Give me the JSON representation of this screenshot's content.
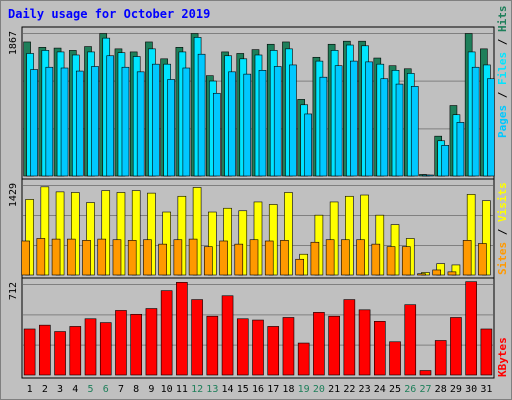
{
  "chart_data": [
    {
      "type": "bar",
      "title": "Daily usage for October 2019",
      "categories": [
        "1",
        "2",
        "3",
        "4",
        "5",
        "6",
        "7",
        "8",
        "9",
        "10",
        "11",
        "12",
        "13",
        "14",
        "15",
        "16",
        "17",
        "18",
        "19",
        "20",
        "21",
        "22",
        "23",
        "24",
        "25",
        "26",
        "27",
        "28",
        "29",
        "30",
        "31"
      ],
      "weekend_categories": [
        "5",
        "6",
        "12",
        "13",
        "19",
        "20",
        "26",
        "27"
      ],
      "ymax_label": "1867",
      "ylim": [
        0,
        1867
      ],
      "series": [
        {
          "name": "Hits",
          "color": "#1e7f5a",
          "values": [
            1750,
            1680,
            1670,
            1640,
            1690,
            1860,
            1660,
            1620,
            1750,
            1530,
            1680,
            1860,
            1310,
            1620,
            1600,
            1650,
            1720,
            1750,
            1000,
            1550,
            1720,
            1760,
            1760,
            1540,
            1440,
            1400,
            20,
            520,
            920,
            1860,
            1660
          ]
        },
        {
          "name": "Files",
          "color": "#00e5ff",
          "values": [
            1600,
            1640,
            1620,
            1580,
            1620,
            1800,
            1610,
            1560,
            1660,
            1460,
            1620,
            1810,
            1240,
            1570,
            1530,
            1580,
            1640,
            1660,
            930,
            1500,
            1640,
            1710,
            1700,
            1460,
            1380,
            1340,
            10,
            460,
            800,
            1620,
            1450
          ]
        },
        {
          "name": "Pages",
          "color": "#00c8ff",
          "values": [
            1390,
            1420,
            1410,
            1370,
            1430,
            1570,
            1420,
            1360,
            1460,
            1260,
            1410,
            1590,
            1080,
            1360,
            1330,
            1380,
            1430,
            1450,
            810,
            1290,
            1440,
            1500,
            1490,
            1270,
            1200,
            1170,
            10,
            400,
            700,
            1420,
            1270
          ]
        }
      ]
    },
    {
      "type": "bar",
      "categories": [
        "1",
        "2",
        "3",
        "4",
        "5",
        "6",
        "7",
        "8",
        "9",
        "10",
        "11",
        "12",
        "13",
        "14",
        "15",
        "16",
        "17",
        "18",
        "19",
        "20",
        "21",
        "22",
        "23",
        "24",
        "25",
        "26",
        "27",
        "28",
        "29",
        "30",
        "31"
      ],
      "ymax_label": "1429",
      "ylim": [
        0,
        1429
      ],
      "series": [
        {
          "name": "Visits",
          "color": "#ffff00",
          "values": [
            1200,
            1400,
            1320,
            1310,
            1150,
            1340,
            1310,
            1340,
            1300,
            1000,
            1250,
            1390,
            1000,
            1060,
            1020,
            1160,
            1120,
            1310,
            330,
            950,
            1160,
            1250,
            1270,
            950,
            800,
            580,
            40,
            180,
            160,
            1280,
            1180
          ]
        },
        {
          "name": "Sites",
          "color": "#ff9900",
          "values": [
            540,
            580,
            570,
            570,
            550,
            570,
            560,
            550,
            560,
            490,
            560,
            570,
            450,
            540,
            490,
            560,
            540,
            550,
            250,
            520,
            560,
            560,
            560,
            490,
            450,
            450,
            20,
            80,
            50,
            550,
            500
          ]
        }
      ]
    },
    {
      "type": "bar",
      "categories": [
        "1",
        "2",
        "3",
        "4",
        "5",
        "6",
        "7",
        "8",
        "9",
        "10",
        "11",
        "12",
        "13",
        "14",
        "15",
        "16",
        "17",
        "18",
        "19",
        "20",
        "21",
        "22",
        "23",
        "24",
        "25",
        "26",
        "27",
        "28",
        "29",
        "30",
        "31"
      ],
      "ymax_label": "712",
      "ylim": [
        0,
        712
      ],
      "series": [
        {
          "name": "KBytes",
          "color": "#ff0000",
          "values": [
            360,
            390,
            340,
            380,
            440,
            410,
            505,
            475,
            520,
            660,
            725,
            590,
            460,
            620,
            440,
            430,
            380,
            450,
            250,
            490,
            460,
            590,
            510,
            420,
            260,
            550,
            35,
            270,
            450,
            730,
            360
          ]
        }
      ]
    }
  ]
}
